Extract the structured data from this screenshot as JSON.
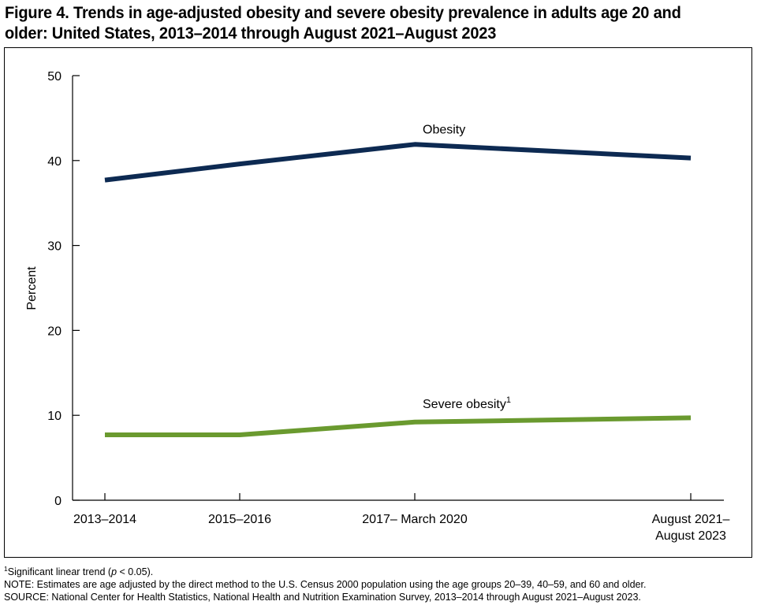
{
  "title": "Figure 4. Trends in age-adjusted obesity and severe obesity prevalence in adults age 20 and older: United States, 2013–2014 through August 2021–August 2023",
  "chart_data": {
    "type": "line",
    "title": "",
    "xlabel": "",
    "ylabel": "Percent",
    "ylim": [
      0,
      50
    ],
    "yticks": [
      0,
      10,
      20,
      30,
      40,
      50
    ],
    "grid": false,
    "legend": "inline labels",
    "categories": [
      "2013–2014",
      "2015–2016",
      "2017– March 2020",
      "August 2021–August 2023"
    ],
    "category_label_lines": [
      [
        "2013–2014"
      ],
      [
        "2015–2016"
      ],
      [
        "2017– March 2020"
      ],
      [
        "August 2021–",
        "August 2023"
      ]
    ],
    "series": [
      {
        "name": "Obesity",
        "values": [
          37.7,
          39.6,
          41.9,
          40.3
        ],
        "color": "#0d2a52"
      },
      {
        "name": "Severe obesity",
        "name_superscript": "1",
        "values": [
          7.7,
          7.7,
          9.2,
          9.7
        ],
        "color": "#6a9a2f"
      }
    ]
  },
  "footnotes": {
    "sup": "1",
    "trend_text": "Significant linear trend (",
    "trend_p": "p",
    "trend_tail": " < 0.05).",
    "note": "NOTE: Estimates are age adjusted by the direct method to the U.S. Census 2000 population using the age groups 20–39, 40–59, and 60 and older.",
    "source": "SOURCE: National Center for Health Statistics, National Health and Nutrition Examination Survey, 2013–2014 through August 2021–August 2023."
  }
}
